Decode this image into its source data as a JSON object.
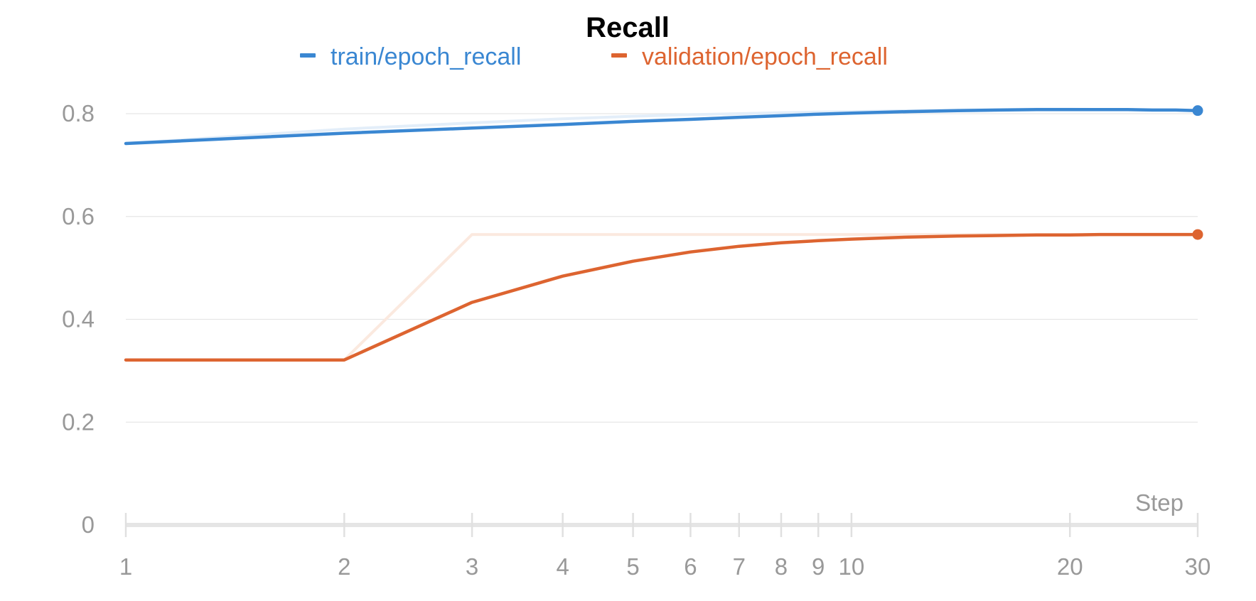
{
  "chart_data": {
    "type": "line",
    "title": "Recall",
    "xlabel": "Step",
    "ylabel": "",
    "x_scale": "log",
    "xlim": [
      1,
      30
    ],
    "ylim": [
      0,
      0.8
    ],
    "grid": true,
    "legend_position": "top",
    "x_ticks": [
      1,
      2,
      3,
      4,
      5,
      6,
      7,
      8,
      9,
      10,
      20,
      30
    ],
    "x_tick_labels": [
      "1",
      "2",
      "3",
      "4",
      "5",
      "6",
      "7",
      "8",
      "9",
      "10",
      "20",
      "30"
    ],
    "y_ticks": [
      0,
      0.2,
      0.4,
      0.6,
      0.8
    ],
    "y_tick_labels": [
      "0",
      "0.2",
      "0.4",
      "0.6",
      "0.8"
    ],
    "series": [
      {
        "name": "train/epoch_recall",
        "color": "#3a87d2",
        "raw_color": "#e3eef9",
        "x": [
          1,
          2,
          3,
          4,
          5,
          6,
          7,
          8,
          9,
          10,
          12,
          14,
          16,
          18,
          20,
          22,
          24,
          26,
          28,
          30
        ],
        "smoothed": [
          0.742,
          0.762,
          0.772,
          0.779,
          0.785,
          0.789,
          0.793,
          0.796,
          0.799,
          0.801,
          0.804,
          0.806,
          0.807,
          0.808,
          0.808,
          0.808,
          0.808,
          0.807,
          0.807,
          0.806
        ],
        "raw": [
          0.742,
          0.77,
          0.782,
          0.79,
          0.795,
          0.798,
          0.8,
          0.802,
          0.803,
          0.804,
          0.806,
          0.807,
          0.808,
          0.809,
          0.809,
          0.808,
          0.808,
          0.807,
          0.807,
          0.806
        ]
      },
      {
        "name": "validation/epoch_recall",
        "color": "#dd6430",
        "raw_color": "#fbe9df",
        "x": [
          1,
          2,
          3,
          4,
          5,
          6,
          7,
          8,
          9,
          10,
          12,
          14,
          16,
          18,
          20,
          22,
          24,
          26,
          28,
          30
        ],
        "smoothed": [
          0.321,
          0.321,
          0.433,
          0.484,
          0.513,
          0.531,
          0.542,
          0.549,
          0.553,
          0.556,
          0.56,
          0.562,
          0.563,
          0.564,
          0.564,
          0.565,
          0.565,
          0.565,
          0.565,
          0.565
        ],
        "raw": [
          0.321,
          0.321,
          0.565,
          0.565,
          0.565,
          0.565,
          0.565,
          0.565,
          0.565,
          0.565,
          0.565,
          0.565,
          0.565,
          0.565,
          0.565,
          0.565,
          0.565,
          0.565,
          0.565,
          0.565
        ]
      }
    ]
  }
}
